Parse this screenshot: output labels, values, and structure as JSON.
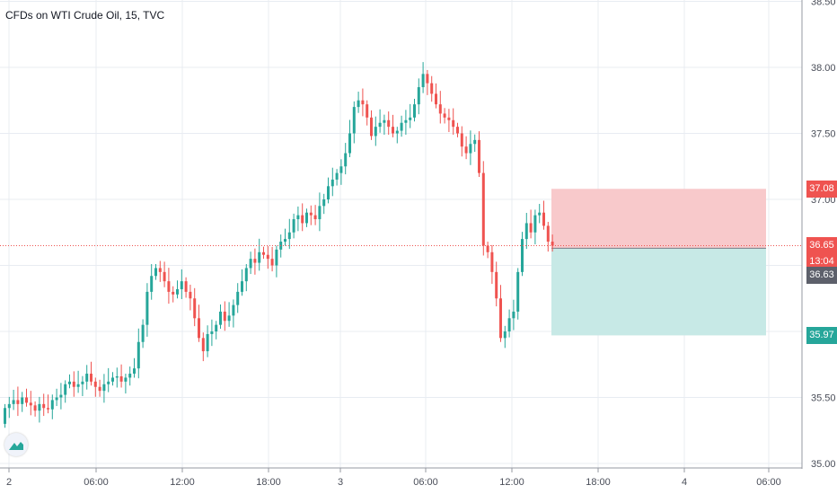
{
  "header": {
    "title": "CFDs on WTI Crude Oil, 15, TVC"
  },
  "price_tags": {
    "stop": "37.08",
    "last": "36.65",
    "countdown": "13:04",
    "entry": "36.63",
    "target": "35.97"
  },
  "colors": {
    "up": "#26a69a",
    "down": "#ef5350",
    "stop_zone": "#f8c9cb",
    "target_zone": "#c7e9e6",
    "price_line": "#ef5350",
    "grid": "#e8ecf2",
    "axis_text": "#4a4e59",
    "entry_tag": "#5d606b"
  },
  "icons": {
    "logo": "tradingview-logo-icon"
  },
  "chart_data": {
    "type": "candlestick",
    "title": "CFDs on WTI Crude Oil, 15, TVC",
    "interval": "15",
    "source": "TVC",
    "ylim": [
      35.0,
      38.5
    ],
    "y_ticks": [
      "38.50",
      "38.00",
      "37.50",
      "37.00",
      "35.50",
      "35.00"
    ],
    "x_ticks": [
      "2",
      "06:00",
      "12:00",
      "18:00",
      "3",
      "06:00",
      "12:00",
      "18:00",
      "4",
      "06:00"
    ],
    "grid": true,
    "last_price": 36.65,
    "countdown": "13:04",
    "position": {
      "side": "short",
      "entry": 36.63,
      "stop": 37.08,
      "target": 35.97
    },
    "closes": [
      35.42,
      35.45,
      35.48,
      35.45,
      35.5,
      35.46,
      35.44,
      35.4,
      35.45,
      35.42,
      35.41,
      35.48,
      35.5,
      35.52,
      35.6,
      35.62,
      35.58,
      35.6,
      35.62,
      35.68,
      35.62,
      35.58,
      35.55,
      35.6,
      35.62,
      35.65,
      35.66,
      35.62,
      35.65,
      35.68,
      35.72,
      35.92,
      36.05,
      36.3,
      36.42,
      36.48,
      36.45,
      36.38,
      36.3,
      36.28,
      36.32,
      36.38,
      36.3,
      36.25,
      36.1,
      35.95,
      35.85,
      35.98,
      36.0,
      36.05,
      36.15,
      36.08,
      36.12,
      36.2,
      36.3,
      36.38,
      36.48,
      36.55,
      36.52,
      36.6,
      36.58,
      36.55,
      36.5,
      36.62,
      36.68,
      36.7,
      36.75,
      36.85,
      36.88,
      36.82,
      36.9,
      36.88,
      36.85,
      36.95,
      37.0,
      37.1,
      37.15,
      37.2,
      37.25,
      37.35,
      37.5,
      37.7,
      37.75,
      37.72,
      37.62,
      37.48,
      37.55,
      37.58,
      37.6,
      37.55,
      37.5,
      37.52,
      37.58,
      37.6,
      37.62,
      37.72,
      37.85,
      37.95,
      37.88,
      37.8,
      37.72,
      37.65,
      37.62,
      37.6,
      37.55,
      37.5,
      37.4,
      37.35,
      37.42,
      37.45,
      37.2,
      36.65,
      36.6,
      36.45,
      36.25,
      35.95,
      36.0,
      36.1,
      36.15,
      36.45,
      36.7,
      36.82,
      36.75,
      36.88,
      36.9,
      36.8,
      36.68,
      36.65
    ]
  }
}
